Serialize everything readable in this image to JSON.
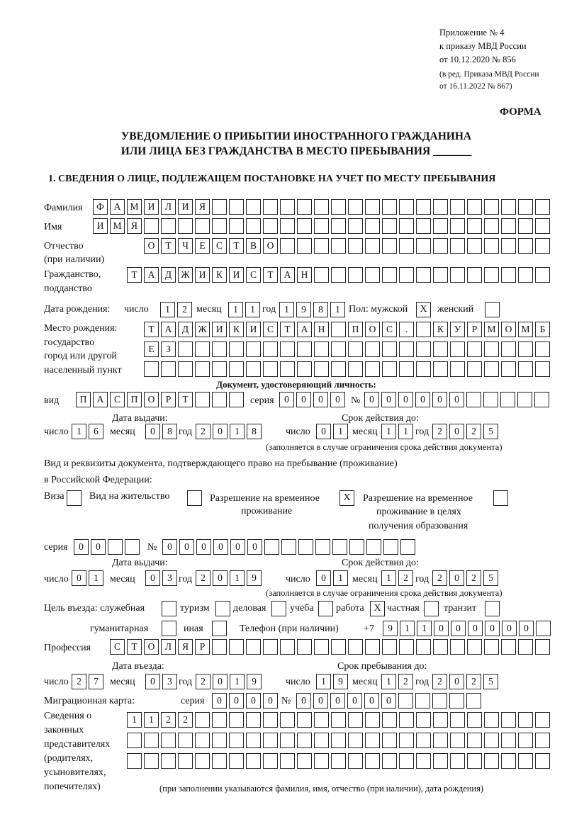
{
  "header": {
    "appendix": "Приложение № 4",
    "order": "к приказу МВД России",
    "date": "от 10.12.2020 № 856",
    "edition1": "(в ред. Приказа МВД России",
    "edition2": "от 16.11.2022 № 867)",
    "form": "ФОРМА",
    "title1": "УВЕДОМЛЕНИЕ О ПРИБЫТИИ ИНОСТРАННОГО ГРАЖДАНИНА",
    "title2": "ИЛИ ЛИЦА БЕЗ ГРАЖДАНСТВА В МЕСТО ПРЕБЫВАНИЯ _______",
    "section1": "1. СВЕДЕНИЯ О ЛИЦЕ, ПОДЛЕЖАЩЕМ ПОСТАНОВКЕ НА УЧЕТ ПО МЕСТУ ПРЕБЫВАНИЯ"
  },
  "labels": {
    "surname": "Фамилия",
    "name": "Имя",
    "patronymic1": "Отчество",
    "patronymic2": "(при наличии)",
    "citizenship1": "Гражданство,",
    "citizenship2": "подданство",
    "birth_date": "Дата рождения:",
    "day": "число",
    "month": "месяц",
    "year": "год",
    "sex": "Пол: мужской",
    "female": "женский",
    "birthplace1": "Место рождения:",
    "birthplace2": "государство",
    "birthplace3": "город или другой",
    "birthplace4": "населенный пункт",
    "id_doc": "Документ, удостоверяющий личность:",
    "kind": "вид",
    "series": "серия",
    "number": "№",
    "issue_date": "Дата выдачи:",
    "valid_until": "Срок действия до:",
    "validity_note": "(заполняется в случае ограничения срока действия документа)",
    "right_doc1": "Вид и реквизиты документа, подтверждающего право на пребывание (проживание)",
    "right_doc2": "в Российской Федерации:",
    "visa": "Виза",
    "residence": "Вид на жительство",
    "temp1": "Разрешение на временное",
    "temp2": "проживание",
    "edu1": "Разрешение на временное",
    "edu2": "проживание в целях",
    "edu3": "получения образования",
    "purpose": "Цель въезда: служебная",
    "tourism": "туризм",
    "business": "деловая",
    "study": "учеба",
    "work": "работа",
    "private": "частная",
    "transit": "транзит",
    "humanitarian": "гуманитарная",
    "other": "иная",
    "phone": "Телефон (при наличии)",
    "phone_prefix": "+7",
    "profession": "Профессия",
    "entry_date": "Дата въезда:",
    "stay_until": "Срок пребывания до:",
    "migration_card": "Миграционная карта:",
    "reps1": "Сведения о",
    "reps2": "законных",
    "reps3": "представителях",
    "reps4": "(родителях,",
    "reps5": "усыновителях,",
    "reps6": "попечителях)",
    "reps_note": "(при заполнении указываются фамилия, имя, отчество (при наличии), дата рождения)"
  },
  "form": {
    "surname": [
      "Ф",
      "А",
      "М",
      "И",
      "Л",
      "И",
      "Я"
    ],
    "name": [
      "И",
      "М",
      "Я"
    ],
    "patronymic": [
      "О",
      "Т",
      "Ч",
      "Е",
      "С",
      "Т",
      "В",
      "О"
    ],
    "citizenship": [
      "Т",
      "А",
      "Д",
      "Ж",
      "И",
      "К",
      "И",
      "С",
      "Т",
      "А",
      "Н"
    ],
    "birth_day": [
      "1",
      "2"
    ],
    "birth_month": [
      "1",
      "1"
    ],
    "birth_year": [
      "1",
      "9",
      "8",
      "1"
    ],
    "sex_male": "X",
    "sex_female": "",
    "birthplace_1": [
      "Т",
      "А",
      "Д",
      "Ж",
      "И",
      "К",
      "И",
      "С",
      "Т",
      "А",
      "Н",
      "",
      "П",
      "О",
      "С",
      ".",
      "",
      "К",
      "У",
      "Р",
      "М",
      "О",
      "М",
      "Б"
    ],
    "birthplace_2": [
      "Е",
      "З"
    ],
    "birthplace_3": [],
    "id_kind": [
      "П",
      "А",
      "С",
      "П",
      "О",
      "Р",
      "Т"
    ],
    "id_series": [
      "0",
      "0",
      "0",
      "0"
    ],
    "id_number": [
      "0",
      "0",
      "0",
      "0",
      "0",
      "0"
    ],
    "id_issue_day": [
      "1",
      "6"
    ],
    "id_issue_month": [
      "0",
      "8"
    ],
    "id_issue_year": [
      "2",
      "0",
      "1",
      "8"
    ],
    "id_valid_day": [
      "0",
      "1"
    ],
    "id_valid_month": [
      "1",
      "1"
    ],
    "id_valid_year": [
      "2",
      "0",
      "2",
      "5"
    ],
    "visa": "",
    "residence": "",
    "temp_residence": "X",
    "edu_residence": "",
    "right_series": [
      "0",
      "0"
    ],
    "right_number": [
      "0",
      "0",
      "0",
      "0",
      "0",
      "0"
    ],
    "right_issue_day": [
      "0",
      "1"
    ],
    "right_issue_month": [
      "0",
      "3"
    ],
    "right_issue_year": [
      "2",
      "0",
      "1",
      "9"
    ],
    "right_valid_day": [
      "0",
      "1"
    ],
    "right_valid_month": [
      "1",
      "2"
    ],
    "right_valid_year": [
      "2",
      "0",
      "2",
      "5"
    ],
    "purpose_service": "",
    "purpose_tourism": "",
    "purpose_business": "",
    "purpose_study": "",
    "purpose_work": "X",
    "purpose_private": "",
    "purpose_transit": "",
    "purpose_humanitarian": "",
    "purpose_other": "",
    "phone": [
      "9",
      "1",
      "1",
      "0",
      "0",
      "0",
      "0",
      "0",
      "0"
    ],
    "profession": [
      "С",
      "Т",
      "О",
      "Л",
      "Я",
      "Р"
    ],
    "entry_day": [
      "2",
      "7"
    ],
    "entry_month": [
      "0",
      "3"
    ],
    "entry_year": [
      "2",
      "0",
      "1",
      "9"
    ],
    "stay_day": [
      "1",
      "9"
    ],
    "stay_month": [
      "1",
      "2"
    ],
    "stay_year": [
      "2",
      "0",
      "2",
      "5"
    ],
    "mc_series": [
      "0",
      "0",
      "0",
      "0"
    ],
    "mc_number": [
      "0",
      "0",
      "0",
      "0",
      "0",
      "0"
    ],
    "reps_1": [
      "1",
      "1",
      "2",
      "2"
    ],
    "reps_2": [],
    "reps_3": []
  }
}
